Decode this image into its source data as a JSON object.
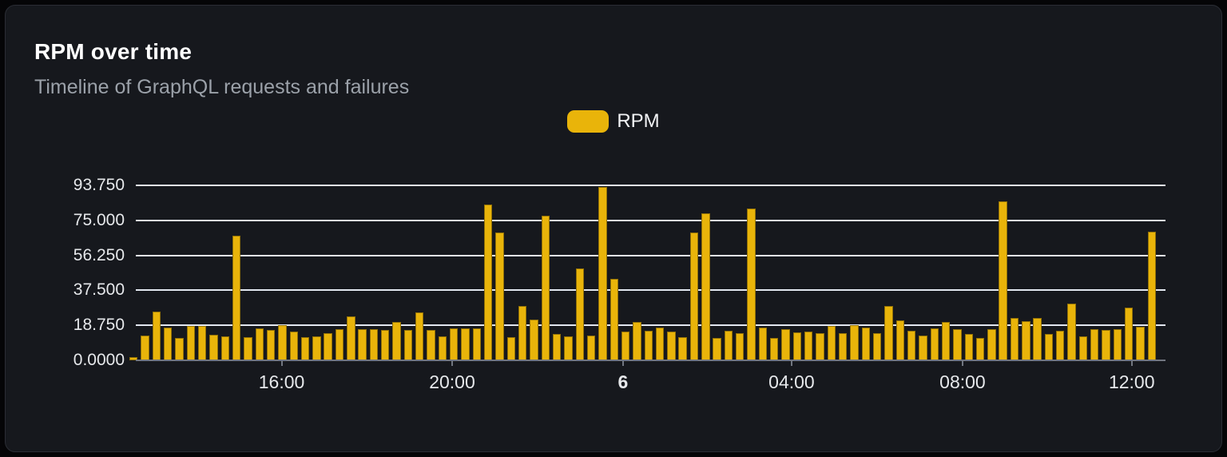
{
  "card": {
    "title": "RPM over time",
    "subtitle": "Timeline of GraphQL requests and failures"
  },
  "legend": {
    "label": "RPM"
  },
  "colors": {
    "page_background": "#050507",
    "card_background": "#16181D",
    "card_border": "#2A2D34",
    "bar": "#E9B40A",
    "grid_line": "#E2E7F0",
    "axis_line": "#717680",
    "axis_label": "#E6E8EB",
    "title_text": "#FFFFFF",
    "subtitle_text": "#9BA1A9"
  },
  "chart_data": {
    "type": "bar",
    "title": "RPM over time",
    "subtitle": "Timeline of GraphQL requests and failures",
    "series_name": "RPM",
    "xlabel": "",
    "ylabel": "",
    "ylim": [
      0,
      93.75
    ],
    "grid": "horizontal",
    "legend_position": "top-center",
    "y_ticks": [
      {
        "label": "0.0000",
        "value": 0
      },
      {
        "label": "18.750",
        "value": 18.75
      },
      {
        "label": "37.500",
        "value": 37.5
      },
      {
        "label": "56.250",
        "value": 56.25
      },
      {
        "label": "75.000",
        "value": 75
      },
      {
        "label": "93.750",
        "value": 93.75
      }
    ],
    "x_ticks": [
      {
        "label": "16:00",
        "pos": 0.1416,
        "bold": false
      },
      {
        "label": "20:00",
        "pos": 0.3072,
        "bold": false
      },
      {
        "label": "6",
        "pos": 0.4732,
        "bold": true
      },
      {
        "label": "04:00",
        "pos": 0.6369,
        "bold": false
      },
      {
        "label": "08:00",
        "pos": 0.8029,
        "bold": false
      },
      {
        "label": "12:00",
        "pos": 0.9672,
        "bold": false
      }
    ],
    "values": [
      1.8,
      13.3,
      26,
      17.6,
      11.8,
      18.3,
      18.5,
      13.7,
      13,
      66.7,
      12.3,
      17.3,
      16.2,
      19,
      15.2,
      12.3,
      13,
      14.4,
      16.6,
      23.4,
      16.9,
      16.9,
      16.2,
      20.5,
      16.2,
      25.7,
      16.2,
      12.7,
      17,
      17.3,
      17.3,
      83.3,
      68.5,
      12.3,
      28.9,
      21.9,
      77.6,
      14.1,
      13,
      49.1,
      13.3,
      92.9,
      43.6,
      15.4,
      20.5,
      15.9,
      17.6,
      15.2,
      12.3,
      68.5,
      78.6,
      11.8,
      15.9,
      14.7,
      81.4,
      17.6,
      11.8,
      16.6,
      14.9,
      15.6,
      14.7,
      18.3,
      14.4,
      19,
      17.6,
      14.7,
      28.9,
      21.6,
      15.9,
      13.3,
      17,
      20.5,
      16.9,
      14,
      12,
      16.6,
      85.1,
      22.8,
      20.9,
      22.8,
      14.1,
      15.9,
      30.3,
      13,
      16.9,
      16.2,
      16.6,
      28.1,
      18,
      69
    ]
  }
}
